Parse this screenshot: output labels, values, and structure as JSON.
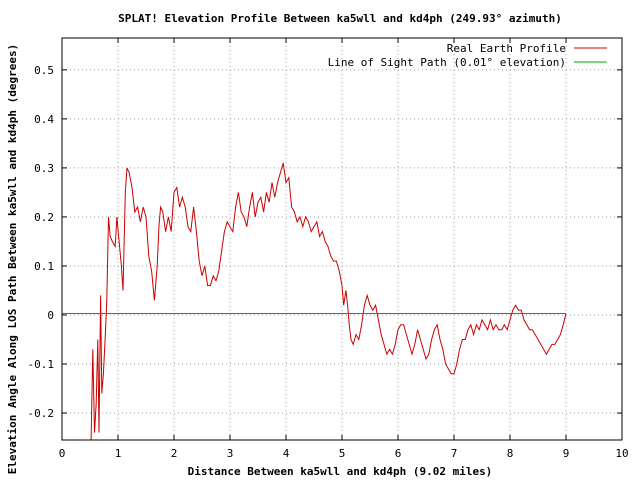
{
  "chart_data": {
    "type": "line",
    "title": "SPLAT! Elevation Profile Between ka5wll and kd4ph (249.93° azimuth)",
    "xlabel": "Distance Between ka5wll and kd4ph (9.02 miles)",
    "ylabel": "Elevation Angle Along LOS Path Between ka5wll and kd4ph (degrees)",
    "xlim": [
      0,
      10
    ],
    "ylim": [
      -0.255,
      0.565
    ],
    "x_ticks": [
      0,
      1,
      2,
      3,
      4,
      5,
      6,
      7,
      8,
      9,
      10
    ],
    "y_ticks": [
      -0.2,
      -0.1,
      0,
      0.1,
      0.2,
      0.3,
      0.4,
      0.5
    ],
    "y_tick_labels": [
      "-0.2",
      "-0.1",
      "0",
      "0.1",
      "0.2",
      "0.3",
      "0.4",
      "0.5"
    ],
    "grid": true,
    "legend_position": "top-right",
    "series": [
      {
        "name": "Real Earth Profile",
        "color": "#cc0000",
        "points": [
          [
            0.52,
            -0.26
          ],
          [
            0.55,
            -0.07
          ],
          [
            0.58,
            -0.24
          ],
          [
            0.61,
            -0.18
          ],
          [
            0.64,
            -0.05
          ],
          [
            0.66,
            -0.24
          ],
          [
            0.69,
            0.04
          ],
          [
            0.71,
            -0.16
          ],
          [
            0.74,
            -0.12
          ],
          [
            0.77,
            -0.05
          ],
          [
            0.8,
            0.03
          ],
          [
            0.83,
            0.2
          ],
          [
            0.86,
            0.16
          ],
          [
            0.9,
            0.15
          ],
          [
            0.95,
            0.14
          ],
          [
            0.98,
            0.2
          ],
          [
            1.02,
            0.15
          ],
          [
            1.06,
            0.1
          ],
          [
            1.09,
            0.05
          ],
          [
            1.13,
            0.25
          ],
          [
            1.16,
            0.3
          ],
          [
            1.2,
            0.29
          ],
          [
            1.25,
            0.26
          ],
          [
            1.3,
            0.21
          ],
          [
            1.35,
            0.22
          ],
          [
            1.4,
            0.19
          ],
          [
            1.45,
            0.22
          ],
          [
            1.5,
            0.2
          ],
          [
            1.55,
            0.12
          ],
          [
            1.6,
            0.09
          ],
          [
            1.65,
            0.03
          ],
          [
            1.7,
            0.1
          ],
          [
            1.73,
            0.18
          ],
          [
            1.76,
            0.22
          ],
          [
            1.8,
            0.21
          ],
          [
            1.85,
            0.17
          ],
          [
            1.9,
            0.2
          ],
          [
            1.95,
            0.17
          ],
          [
            2.0,
            0.25
          ],
          [
            2.05,
            0.26
          ],
          [
            2.1,
            0.22
          ],
          [
            2.15,
            0.24
          ],
          [
            2.2,
            0.22
          ],
          [
            2.25,
            0.18
          ],
          [
            2.3,
            0.17
          ],
          [
            2.35,
            0.22
          ],
          [
            2.4,
            0.17
          ],
          [
            2.45,
            0.11
          ],
          [
            2.5,
            0.08
          ],
          [
            2.55,
            0.1
          ],
          [
            2.6,
            0.06
          ],
          [
            2.65,
            0.06
          ],
          [
            2.7,
            0.08
          ],
          [
            2.75,
            0.07
          ],
          [
            2.8,
            0.09
          ],
          [
            2.85,
            0.13
          ],
          [
            2.9,
            0.17
          ],
          [
            2.95,
            0.19
          ],
          [
            3.0,
            0.18
          ],
          [
            3.05,
            0.17
          ],
          [
            3.1,
            0.22
          ],
          [
            3.15,
            0.25
          ],
          [
            3.2,
            0.21
          ],
          [
            3.25,
            0.2
          ],
          [
            3.3,
            0.18
          ],
          [
            3.35,
            0.22
          ],
          [
            3.4,
            0.25
          ],
          [
            3.45,
            0.2
          ],
          [
            3.5,
            0.23
          ],
          [
            3.55,
            0.24
          ],
          [
            3.6,
            0.21
          ],
          [
            3.65,
            0.25
          ],
          [
            3.7,
            0.23
          ],
          [
            3.75,
            0.27
          ],
          [
            3.8,
            0.24
          ],
          [
            3.85,
            0.27
          ],
          [
            3.9,
            0.29
          ],
          [
            3.95,
            0.31
          ],
          [
            4.0,
            0.27
          ],
          [
            4.05,
            0.28
          ],
          [
            4.1,
            0.22
          ],
          [
            4.15,
            0.21
          ],
          [
            4.2,
            0.19
          ],
          [
            4.25,
            0.2
          ],
          [
            4.3,
            0.18
          ],
          [
            4.35,
            0.2
          ],
          [
            4.4,
            0.19
          ],
          [
            4.45,
            0.17
          ],
          [
            4.5,
            0.18
          ],
          [
            4.55,
            0.19
          ],
          [
            4.6,
            0.16
          ],
          [
            4.65,
            0.17
          ],
          [
            4.7,
            0.15
          ],
          [
            4.75,
            0.14
          ],
          [
            4.8,
            0.12
          ],
          [
            4.85,
            0.11
          ],
          [
            4.9,
            0.11
          ],
          [
            4.95,
            0.09
          ],
          [
            5.0,
            0.06
          ],
          [
            5.03,
            0.02
          ],
          [
            5.07,
            0.05
          ],
          [
            5.1,
            0.02
          ],
          [
            5.13,
            -0.02
          ],
          [
            5.16,
            -0.05
          ],
          [
            5.2,
            -0.06
          ],
          [
            5.25,
            -0.04
          ],
          [
            5.3,
            -0.05
          ],
          [
            5.35,
            -0.02
          ],
          [
            5.4,
            0.02
          ],
          [
            5.45,
            0.04
          ],
          [
            5.5,
            0.02
          ],
          [
            5.55,
            0.01
          ],
          [
            5.6,
            0.02
          ],
          [
            5.65,
            -0.01
          ],
          [
            5.7,
            -0.04
          ],
          [
            5.75,
            -0.06
          ],
          [
            5.8,
            -0.08
          ],
          [
            5.85,
            -0.07
          ],
          [
            5.9,
            -0.08
          ],
          [
            5.95,
            -0.06
          ],
          [
            6.0,
            -0.03
          ],
          [
            6.05,
            -0.02
          ],
          [
            6.1,
            -0.02
          ],
          [
            6.15,
            -0.04
          ],
          [
            6.2,
            -0.06
          ],
          [
            6.25,
            -0.08
          ],
          [
            6.3,
            -0.06
          ],
          [
            6.35,
            -0.03
          ],
          [
            6.4,
            -0.05
          ],
          [
            6.45,
            -0.07
          ],
          [
            6.5,
            -0.09
          ],
          [
            6.55,
            -0.08
          ],
          [
            6.6,
            -0.05
          ],
          [
            6.65,
            -0.03
          ],
          [
            6.7,
            -0.02
          ],
          [
            6.75,
            -0.05
          ],
          [
            6.8,
            -0.07
          ],
          [
            6.85,
            -0.1
          ],
          [
            6.9,
            -0.11
          ],
          [
            6.95,
            -0.12
          ],
          [
            7.0,
            -0.12
          ],
          [
            7.05,
            -0.1
          ],
          [
            7.1,
            -0.07
          ],
          [
            7.15,
            -0.05
          ],
          [
            7.2,
            -0.05
          ],
          [
            7.25,
            -0.03
          ],
          [
            7.3,
            -0.02
          ],
          [
            7.35,
            -0.04
          ],
          [
            7.4,
            -0.02
          ],
          [
            7.45,
            -0.03
          ],
          [
            7.5,
            -0.01
          ],
          [
            7.55,
            -0.02
          ],
          [
            7.6,
            -0.03
          ],
          [
            7.65,
            -0.01
          ],
          [
            7.7,
            -0.03
          ],
          [
            7.75,
            -0.02
          ],
          [
            7.8,
            -0.03
          ],
          [
            7.85,
            -0.03
          ],
          [
            7.9,
            -0.02
          ],
          [
            7.95,
            -0.03
          ],
          [
            8.0,
            -0.01
          ],
          [
            8.05,
            0.01
          ],
          [
            8.1,
            0.02
          ],
          [
            8.15,
            0.01
          ],
          [
            8.2,
            0.01
          ],
          [
            8.25,
            -0.01
          ],
          [
            8.3,
            -0.02
          ],
          [
            8.35,
            -0.03
          ],
          [
            8.4,
            -0.03
          ],
          [
            8.45,
            -0.04
          ],
          [
            8.5,
            -0.05
          ],
          [
            8.55,
            -0.06
          ],
          [
            8.6,
            -0.07
          ],
          [
            8.65,
            -0.08
          ],
          [
            8.7,
            -0.07
          ],
          [
            8.75,
            -0.06
          ],
          [
            8.8,
            -0.06
          ],
          [
            8.85,
            -0.05
          ],
          [
            8.9,
            -0.04
          ],
          [
            8.95,
            -0.02
          ],
          [
            9.0,
            0.003
          ]
        ]
      },
      {
        "name": "Line of Sight Path (0.01° elevation)",
        "color": "#00aa00",
        "points": [
          [
            0.0,
            0.003
          ],
          [
            9.0,
            0.003
          ]
        ]
      }
    ]
  }
}
